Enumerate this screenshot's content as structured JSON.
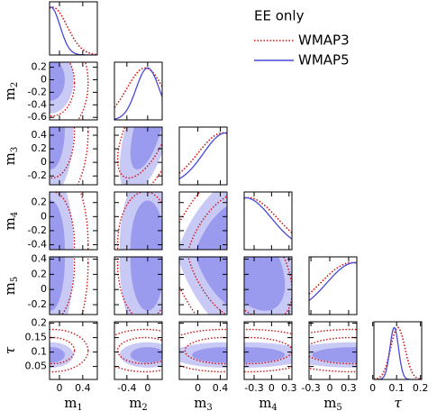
{
  "chart_data": {
    "type": "corner",
    "legend_title": "EE only",
    "parameters": [
      {
        "symbol": "m",
        "subscript": "1",
        "lim": [
          -0.17,
          0.65
        ],
        "xticks": [
          0,
          0.4
        ],
        "yticks": []
      },
      {
        "symbol": "m",
        "subscript": "2",
        "lim": [
          -0.64,
          0.28
        ],
        "xticks": [
          -0.4,
          0
        ],
        "yticks": [
          0.2,
          0,
          -0.2,
          -0.4,
          -0.6
        ]
      },
      {
        "symbol": "m",
        "subscript": "3",
        "lim": [
          -0.33,
          0.52
        ],
        "xticks": [
          0,
          0.4
        ],
        "yticks": [
          0.4,
          0.2,
          0,
          -0.2
        ]
      },
      {
        "symbol": "m",
        "subscript": "4",
        "lim": [
          -0.47,
          0.35
        ],
        "xticks": [
          -0.3,
          0,
          0.3
        ],
        "yticks": [
          0.2,
          0,
          -0.2,
          -0.4
        ]
      },
      {
        "symbol": "m",
        "subscript": "5",
        "lim": [
          -0.33,
          0.43
        ],
        "xticks": [
          -0.3,
          0,
          0.3
        ],
        "yticks": [
          0.4,
          0.2,
          0,
          -0.2
        ]
      },
      {
        "symbol": "τ",
        "lim": [
          0.005,
          0.205
        ],
        "xticks": [
          0,
          0.1,
          0.2
        ],
        "yticks": [
          0.2,
          0.15,
          0.1,
          0.05
        ]
      }
    ],
    "series": [
      {
        "name": "WMAP3",
        "color": "#d01010",
        "style": "dotted",
        "mean": [
          -0.12,
          -0.05,
          0.45,
          -0.4,
          0.35,
          0.105
        ],
        "sigma": [
          0.25,
          0.35,
          0.45,
          0.5,
          0.5,
          0.03
        ]
      },
      {
        "name": "WMAP5",
        "color": "#4848d8",
        "style": "solid",
        "fill": [
          "#c9c9f5",
          "#9a9aef"
        ],
        "mean": [
          -0.15,
          0.0,
          0.5,
          -0.45,
          0.4,
          0.09
        ],
        "sigma": [
          0.16,
          0.22,
          0.4,
          0.45,
          0.45,
          0.018
        ]
      }
    ],
    "correlations": [
      [
        0
      ],
      [
        0,
        0.6
      ],
      [
        0,
        0,
        0.5
      ],
      [
        0,
        0,
        -0.5,
        -0.5
      ],
      [
        0,
        0,
        0,
        0,
        0
      ]
    ]
  }
}
